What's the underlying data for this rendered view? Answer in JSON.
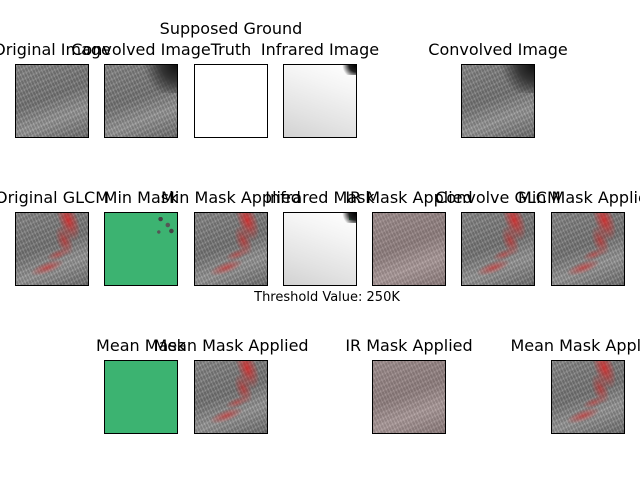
{
  "titles": {
    "r0c0": "Original Image",
    "r0c1": "Convolved Image",
    "r0c2_line1": "Supposed Ground",
    "r0c2_line2": "Truth",
    "r0c3": "Infrared Image",
    "r0c5": "Convolved Image",
    "r1c0": "Original GLCM",
    "r1c1": "Min Mask",
    "r1c2": "Min Mask Applied",
    "r1c3": "Infrared Mask",
    "r1c4": "IR Mask Applied",
    "r1c5": "Convolve GLCM",
    "r1c6": "Min Mask Applied",
    "r2c1": "Mean Mask",
    "r2c2": "Mean Mask Applied",
    "r2c4": "IR Mask Applied",
    "r2c6": "Mean Mask Applied"
  },
  "threshold_label": "Threshold Value: 250K",
  "colors": {
    "mask_green": "#3cb371",
    "overlay_red": "#e61e1e"
  }
}
